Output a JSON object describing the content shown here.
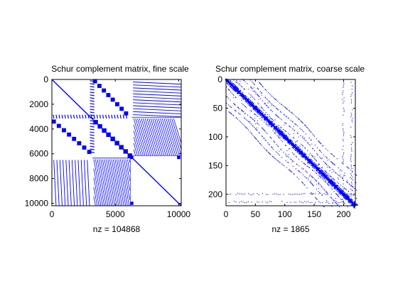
{
  "chart_data": [
    {
      "type": "spy",
      "title": "Schur complement matrix, fine scale",
      "xlabel": "nz = 104868",
      "ylabel": "",
      "nz": 104868,
      "xlim": [
        0,
        10200
      ],
      "ylim": [
        0,
        10200
      ],
      "xticks": [
        0,
        5000,
        10000
      ],
      "yticks": [
        0,
        2000,
        4000,
        6000,
        8000,
        10000
      ],
      "color": "#0000ff",
      "blocks": [
        {
          "name": "dense-square-block-1",
          "center": [
            300,
            300
          ],
          "size": 380
        },
        {
          "name": "dense-square-block-2",
          "center": [
            3500,
            3500
          ],
          "size": 380
        },
        {
          "name": "dense-square-block-3",
          "center": [
            6200,
            6200
          ],
          "size": 380
        }
      ]
    },
    {
      "type": "spy",
      "title": "Schur complement matrix, coarse scale",
      "xlabel": "nz = 1865",
      "ylabel": "",
      "nz": 1865,
      "xlim": [
        0,
        220
      ],
      "ylim": [
        0,
        220
      ],
      "xticks": [
        0,
        50,
        100,
        150,
        200
      ],
      "yticks": [
        0,
        50,
        100,
        150,
        200
      ],
      "color": "#0000ff"
    }
  ]
}
